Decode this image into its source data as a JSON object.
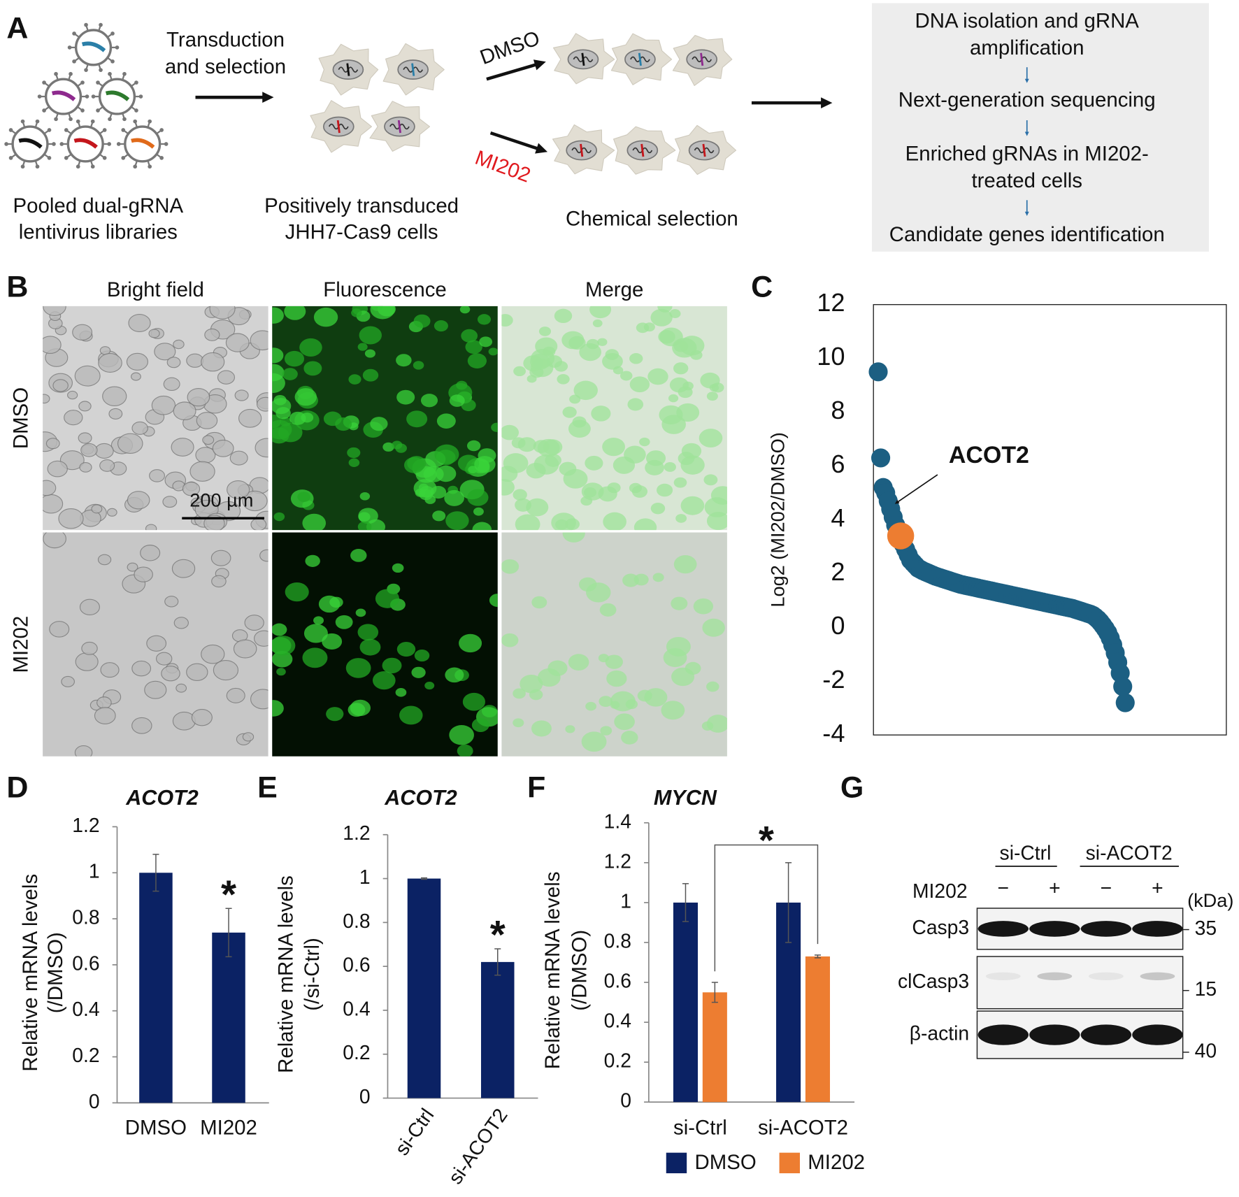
{
  "panel_labels": [
    "A",
    "B",
    "C",
    "D",
    "E",
    "F",
    "G"
  ],
  "panel_a": {
    "arrow1_label": [
      "Transduction",
      "and selection"
    ],
    "library_label": [
      "Pooled dual-gRNA",
      "lentivirus libraries"
    ],
    "cells_label": [
      "Positively transduced",
      "JHH7-Cas9 cells"
    ],
    "dmso": "DMSO",
    "mi202": "MI202",
    "selection_label": "Chemical selection",
    "pipeline": [
      [
        "DNA isolation and gRNA",
        "amplification"
      ],
      [
        "Next-generation sequencing"
      ],
      [
        "Enriched gRNAs in MI202-",
        "treated cells"
      ],
      [
        "Candidate genes identification"
      ]
    ]
  },
  "panel_b": {
    "columns": [
      "Bright field",
      "Fluorescence",
      "Merge"
    ],
    "rows": [
      "DMSO",
      "MI202"
    ],
    "scale_bar": "200 µm"
  },
  "panel_g": {
    "groups": [
      "si-Ctrl",
      "si-ACOT2"
    ],
    "treatment": "MI202",
    "signs": [
      "−",
      "+",
      "−",
      "+"
    ],
    "unit": "(kDa)",
    "blots": [
      {
        "name": "Casp3",
        "kda": 35
      },
      {
        "name": "clCasp3",
        "kda": 15
      },
      {
        "name": "β-actin",
        "kda": 40
      }
    ]
  },
  "chart_data": [
    {
      "type": "scatter",
      "ylabel": "Log2 (MI202/DMSO)",
      "color": "#1c5f82",
      "ylim": [
        -4,
        12
      ],
      "yticks": [
        -4,
        -2,
        0,
        2,
        4,
        6,
        8,
        10,
        12
      ],
      "values": [
        9.5,
        6.3,
        5.2,
        5.0,
        4.7,
        4.4,
        4.1,
        3.8,
        3.6,
        3.4,
        3.1,
        2.9,
        2.7,
        2.5,
        2.4,
        2.3,
        2.2,
        2.15,
        2.1,
        2.06,
        2.02,
        1.98,
        1.94,
        1.9,
        1.87,
        1.84,
        1.81,
        1.78,
        1.75,
        1.72,
        1.69,
        1.66,
        1.63,
        1.6,
        1.58,
        1.56,
        1.54,
        1.52,
        1.5,
        1.48,
        1.46,
        1.44,
        1.42,
        1.4,
        1.38,
        1.36,
        1.34,
        1.32,
        1.3,
        1.28,
        1.26,
        1.24,
        1.22,
        1.2,
        1.18,
        1.16,
        1.14,
        1.12,
        1.1,
        1.08,
        1.06,
        1.04,
        1.02,
        1.0,
        0.98,
        0.96,
        0.94,
        0.92,
        0.9,
        0.88,
        0.86,
        0.84,
        0.82,
        0.8,
        0.78,
        0.76,
        0.74,
        0.72,
        0.7,
        0.67,
        0.64,
        0.61,
        0.58,
        0.55,
        0.52,
        0.49,
        0.45,
        0.38,
        0.3,
        0.2,
        0.08,
        -0.05,
        -0.2,
        -0.4,
        -0.65,
        -0.95,
        -1.3,
        -1.7,
        -2.2,
        -2.8
      ],
      "annotation": {
        "text": "ACOT2",
        "value": 3.4,
        "color": "#ed7d31"
      }
    },
    {
      "type": "bar",
      "title": "ACOT2",
      "ylabel": [
        "Relative mRNA levels",
        "(/DMSO)"
      ],
      "categories": [
        "DMSO",
        "MI202"
      ],
      "values": [
        1,
        0.74
      ],
      "errors": [
        0.08,
        0.105
      ],
      "markers": [
        null,
        "*"
      ],
      "color": "#0b2264",
      "ylim": [
        0,
        1.2
      ],
      "yticks": [
        0,
        0.2,
        0.4,
        0.6,
        0.8,
        1,
        1.2
      ]
    },
    {
      "type": "bar",
      "title": "ACOT2",
      "ylabel": [
        "Relative mRNA levels",
        "(/si-Ctrl)"
      ],
      "categories": [
        "si-Ctrl",
        "si-ACOT2"
      ],
      "values": [
        1,
        0.62
      ],
      "errors": [
        0.003,
        0.06
      ],
      "markers": [
        null,
        "*"
      ],
      "color": "#0b2264",
      "ylim": [
        0,
        1.2
      ],
      "yticks": [
        0,
        0.2,
        0.4,
        0.6,
        0.8,
        1,
        1.2
      ]
    },
    {
      "type": "bar",
      "title": "MYCN",
      "ylabel": [
        "Relative mRNA levels",
        "(/DMSO)"
      ],
      "categories": [
        "si-Ctrl",
        "si-ACOT2"
      ],
      "series": [
        {
          "name": "DMSO",
          "color": "#0b2264",
          "values": [
            1,
            1
          ],
          "errors": [
            0.095,
            0.2
          ]
        },
        {
          "name": "MI202",
          "color": "#ed7d31",
          "values": [
            0.55,
            0.73
          ],
          "errors": [
            0.05,
            0.007
          ]
        }
      ],
      "bracket": "*",
      "ylim": [
        0,
        1.4
      ],
      "yticks": [
        0,
        0.2,
        0.4,
        0.6,
        0.8,
        1,
        1.2,
        1.4
      ]
    }
  ]
}
